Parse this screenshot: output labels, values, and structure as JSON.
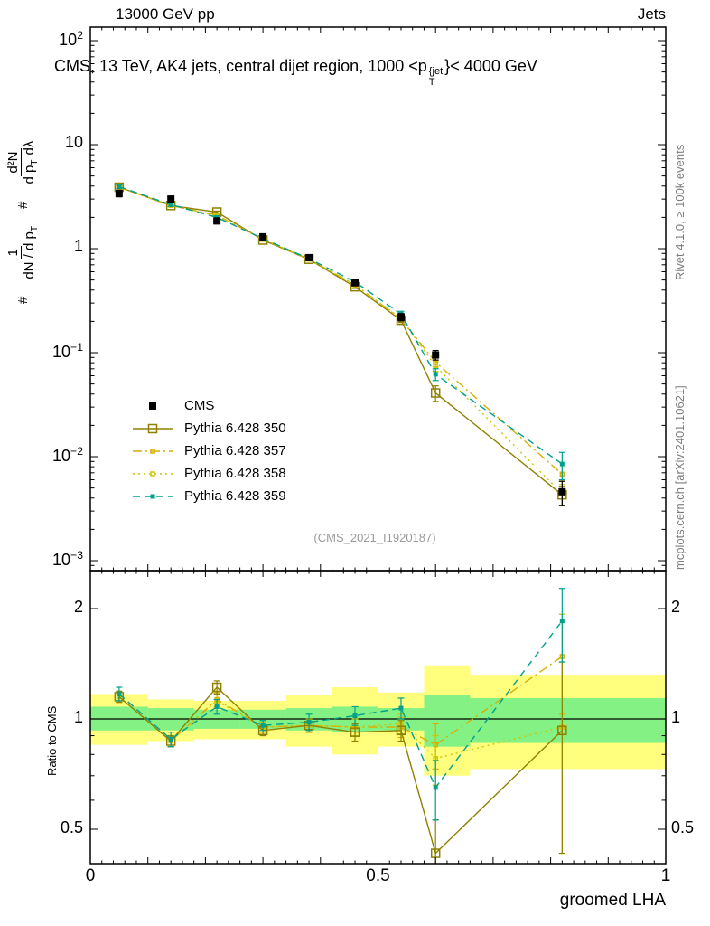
{
  "header": {
    "left": "13000 GeV pp",
    "right": "Jets"
  },
  "title": {
    "part1": "CMS, 13 TeV, AK4 jets, central dijet region, 1000 <p",
    "sup": "{jet",
    "sub": "T",
    "part2": "}< 4000 GeV"
  },
  "ylabel": {
    "hash1": "#",
    "f1num": "1",
    "f1den": "dN / d p",
    "f1den_sub": "T",
    "hash2": "#",
    "f2num": "d²N",
    "f2den_a": "d p",
    "f2den_sub": "T",
    "f2den_b": "dλ"
  },
  "ratio_ylabel": "Ratio to CMS",
  "watermark": "(CMS_2021_I1920187)",
  "side_notes": {
    "right_top": "Rivet 4.1.0, ≥ 100k events",
    "right_bottom": "mcplots.cern.ch [arXiv:2401.10621]"
  },
  "chart_data": {
    "type": "line",
    "xlabel": "groomed LHA",
    "xlim": [
      0,
      1
    ],
    "x": [
      0.05,
      0.14,
      0.22,
      0.3,
      0.38,
      0.46,
      0.54,
      0.6,
      0.82
    ],
    "xticks": [
      {
        "v": 0,
        "label": "0"
      },
      {
        "v": 0.5,
        "label": "0.5"
      },
      {
        "v": 1,
        "label": "1"
      }
    ],
    "main": {
      "ylog": true,
      "ylim": [
        0.00082,
        135
      ],
      "yticks": [
        {
          "v": 100,
          "mant": "10",
          "exp": "2"
        },
        {
          "v": 10,
          "mant": "10"
        },
        {
          "v": 1,
          "mant": "1"
        },
        {
          "v": 0.1,
          "mant": "10",
          "exp": "−1"
        },
        {
          "v": 0.01,
          "mant": "10",
          "exp": "−2"
        },
        {
          "v": 0.001,
          "mant": "10",
          "exp": "−3"
        }
      ],
      "series": [
        {
          "label": "CMS",
          "color": "#000000",
          "marker": "square-filled",
          "marker_size": 8,
          "line": "none",
          "values": [
            3.4,
            3.0,
            1.85,
            1.3,
            0.82,
            0.47,
            0.22,
            0.095,
            0.0046
          ],
          "errors": [
            0.25,
            0.2,
            0.12,
            0.07,
            0.05,
            0.03,
            0.018,
            0.01,
            0.0012
          ]
        },
        {
          "label": "Pythia 6.428 350",
          "color": "#8f8100",
          "marker": "square-open",
          "marker_size": 9,
          "line": "solid",
          "values": [
            3.9,
            2.6,
            2.25,
            1.21,
            0.79,
            0.43,
            0.205,
            0.041,
            0.0043
          ],
          "errors": [
            0.08,
            0.06,
            0.05,
            0.03,
            0.02,
            0.015,
            0.01,
            0.007,
            0.0009
          ]
        },
        {
          "label": "Pythia 6.428 357",
          "color": "#d9ae00",
          "marker": "square-open",
          "marker_size": 4,
          "line": "dashdot",
          "values": [
            3.9,
            2.6,
            2.1,
            1.23,
            0.79,
            0.45,
            0.21,
            0.081,
            0.0068
          ],
          "errors": [
            0.08,
            0.06,
            0.05,
            0.03,
            0.02,
            0.015,
            0.01,
            0.008,
            0.001
          ]
        },
        {
          "label": "Pythia 6.428 358",
          "color": "#cfc400",
          "marker": "square-open",
          "marker_size": 4,
          "line": "dot",
          "values": [
            3.9,
            2.6,
            2.07,
            1.24,
            0.79,
            0.45,
            0.213,
            0.074,
            0.0044
          ],
          "errors": [
            0.08,
            0.06,
            0.05,
            0.03,
            0.02,
            0.015,
            0.01,
            0.008,
            0.001
          ]
        },
        {
          "label": "Pythia 6.428 359",
          "color": "#00a08c",
          "marker": "square-filled",
          "marker_size": 5,
          "line": "dash",
          "values": [
            3.95,
            2.65,
            2.0,
            1.25,
            0.8,
            0.48,
            0.235,
            0.062,
            0.0085
          ],
          "errors": [
            0.15,
            0.1,
            0.07,
            0.04,
            0.03,
            0.02,
            0.015,
            0.008,
            0.0025
          ]
        }
      ]
    },
    "ratio": {
      "ylog": true,
      "ylim": [
        0.4,
        2.54
      ],
      "center": 1,
      "yticks": [
        {
          "v": 0.5,
          "label": "0.5"
        },
        {
          "v": 1,
          "label": "1"
        },
        {
          "v": 2,
          "label": "2"
        }
      ],
      "band_colors": {
        "yellow": "#ffff7d",
        "green": "#83f183"
      },
      "bands": [
        {
          "x0": 0.0,
          "x1": 0.1,
          "yellow": [
            0.85,
            1.17
          ],
          "green": [
            0.93,
            1.08
          ]
        },
        {
          "x0": 0.1,
          "x1": 0.18,
          "yellow": [
            0.87,
            1.13
          ],
          "green": [
            0.93,
            1.07
          ]
        },
        {
          "x0": 0.18,
          "x1": 0.26,
          "yellow": [
            0.88,
            1.12
          ],
          "green": [
            0.94,
            1.06
          ]
        },
        {
          "x0": 0.26,
          "x1": 0.34,
          "yellow": [
            0.88,
            1.12
          ],
          "green": [
            0.94,
            1.06
          ]
        },
        {
          "x0": 0.34,
          "x1": 0.42,
          "yellow": [
            0.84,
            1.16
          ],
          "green": [
            0.93,
            1.07
          ]
        },
        {
          "x0": 0.42,
          "x1": 0.5,
          "yellow": [
            0.8,
            1.22
          ],
          "green": [
            0.92,
            1.08
          ]
        },
        {
          "x0": 0.5,
          "x1": 0.58,
          "yellow": [
            0.84,
            1.18
          ],
          "green": [
            0.93,
            1.07
          ]
        },
        {
          "x0": 0.58,
          "x1": 0.66,
          "yellow": [
            0.7,
            1.4
          ],
          "green": [
            0.84,
            1.16
          ]
        },
        {
          "x0": 0.66,
          "x1": 1.0,
          "yellow": [
            0.73,
            1.32
          ],
          "green": [
            0.86,
            1.14
          ]
        }
      ],
      "series": [
        {
          "label": "Pythia 6.428 357",
          "color": "#d9ae00",
          "marker": "square-open",
          "marker_size": 4,
          "line": "dashdot",
          "values": [
            1.15,
            0.87,
            1.13,
            0.95,
            0.96,
            0.95,
            0.95,
            0.85,
            1.48
          ],
          "errors": [
            0.04,
            0.03,
            0.05,
            0.03,
            0.04,
            0.05,
            0.06,
            0.12,
            0.45
          ]
        },
        {
          "label": "Pythia 6.428 358",
          "color": "#cfc400",
          "marker": "square-open",
          "marker_size": 4,
          "line": "dot",
          "values": [
            1.15,
            0.87,
            1.12,
            0.95,
            0.96,
            0.95,
            0.97,
            0.78,
            0.95
          ],
          "errors": [
            0.04,
            0.03,
            0.05,
            0.03,
            0.04,
            0.05,
            0.06,
            0.12,
            0.52
          ]
        },
        {
          "label": "Pythia 6.428 350",
          "color": "#8f8100",
          "marker": "square-open",
          "marker_size": 9,
          "line": "solid",
          "values": [
            1.15,
            0.87,
            1.22,
            0.93,
            0.96,
            0.92,
            0.93,
            0.43,
            0.93
          ],
          "errors": [
            0.04,
            0.03,
            0.05,
            0.03,
            0.04,
            0.05,
            0.06,
            0.1,
            0.5
          ]
        },
        {
          "label": "Pythia 6.428 359",
          "color": "#00a08c",
          "marker": "square-filled",
          "marker_size": 5,
          "line": "dash",
          "values": [
            1.17,
            0.88,
            1.08,
            0.96,
            0.98,
            1.02,
            1.07,
            0.65,
            1.85
          ],
          "errors": [
            0.05,
            0.04,
            0.05,
            0.03,
            0.05,
            0.06,
            0.07,
            0.12,
            0.42
          ]
        }
      ]
    }
  }
}
